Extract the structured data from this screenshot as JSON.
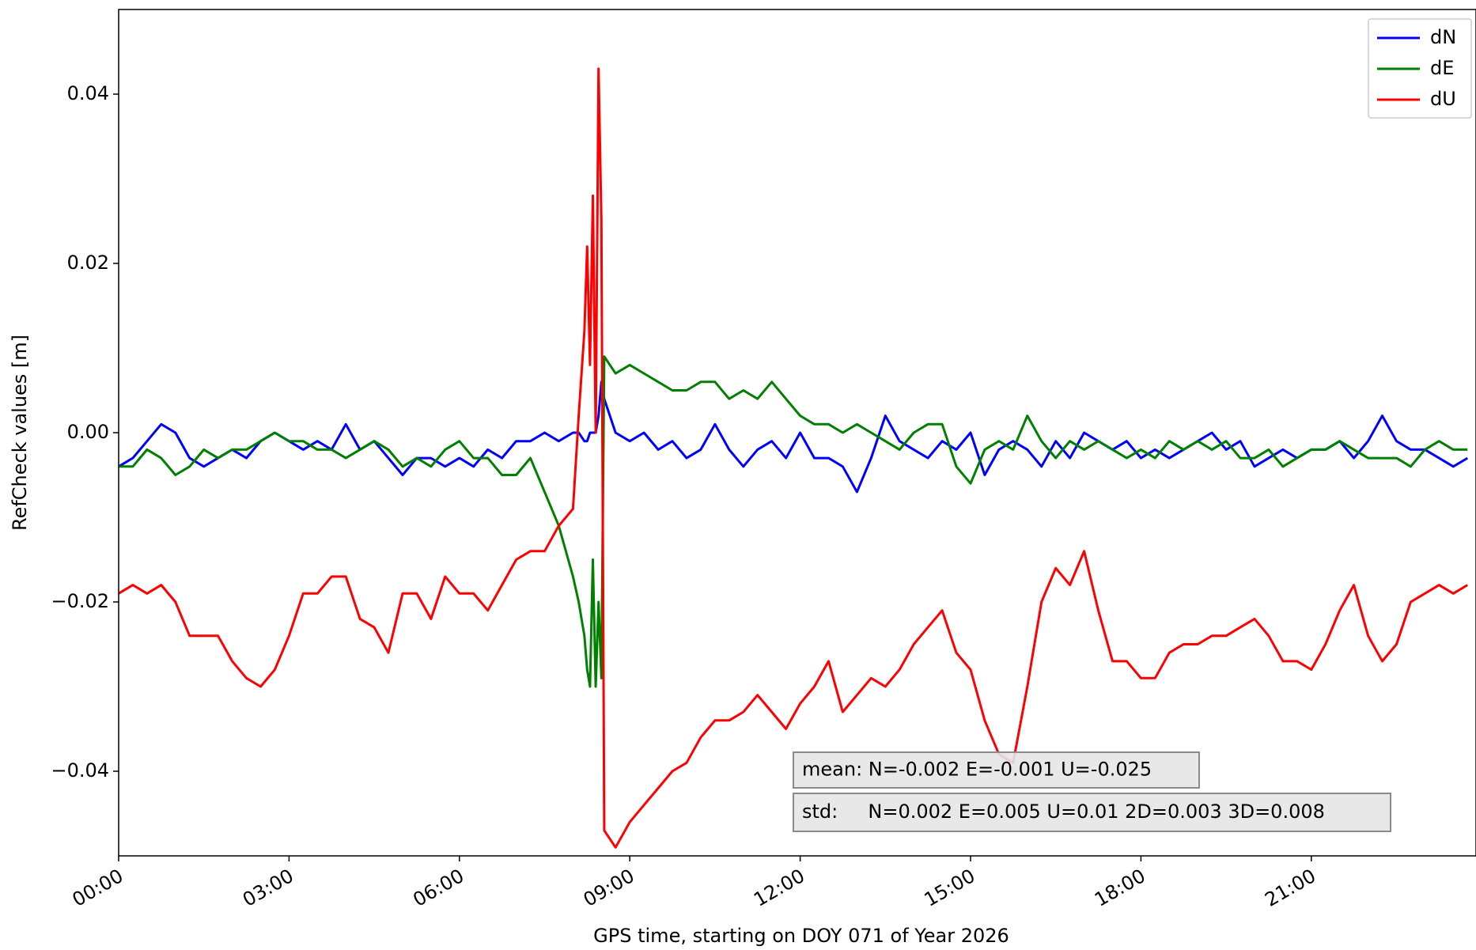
{
  "chart_data": {
    "type": "line",
    "xlabel": "GPS time, starting on DOY 071 of Year 2026",
    "ylabel": "RefCheck values [m]",
    "x": [
      0,
      0.25,
      0.5,
      0.75,
      1,
      1.25,
      1.5,
      1.75,
      2,
      2.25,
      2.5,
      2.75,
      3,
      3.25,
      3.5,
      3.75,
      4,
      4.25,
      4.5,
      4.75,
      5,
      5.25,
      5.5,
      5.75,
      6,
      6.25,
      6.5,
      6.75,
      7,
      7.25,
      7.5,
      7.75,
      8,
      8.1,
      8.2,
      8.25,
      8.3,
      8.35,
      8.4,
      8.45,
      8.5,
      8.55,
      8.75,
      9,
      9.25,
      9.5,
      9.75,
      10,
      10.25,
      10.5,
      10.75,
      11,
      11.25,
      11.5,
      11.75,
      12,
      12.25,
      12.5,
      12.75,
      13,
      13.25,
      13.5,
      13.75,
      14,
      14.25,
      14.5,
      14.75,
      15,
      15.25,
      15.5,
      15.75,
      16,
      16.25,
      16.5,
      16.75,
      17,
      17.25,
      17.5,
      17.75,
      18,
      18.25,
      18.5,
      18.75,
      19,
      19.25,
      19.5,
      19.75,
      20,
      20.25,
      20.5,
      20.75,
      21,
      21.25,
      21.5,
      21.75,
      22,
      22.25,
      22.5,
      22.75,
      23,
      23.25,
      23.5,
      23.75
    ],
    "series": [
      {
        "name": "dN",
        "color": "#0000ff",
        "values": [
          -0.004,
          -0.003,
          -0.001,
          0.001,
          0.0,
          -0.003,
          -0.004,
          -0.003,
          -0.002,
          -0.003,
          -0.001,
          0.0,
          -0.001,
          -0.002,
          -0.001,
          -0.002,
          0.001,
          -0.002,
          -0.001,
          -0.003,
          -0.005,
          -0.003,
          -0.003,
          -0.004,
          -0.003,
          -0.004,
          -0.002,
          -0.003,
          -0.001,
          -0.001,
          0.0,
          -0.001,
          0.0,
          0.0,
          -0.001,
          -0.001,
          0.0,
          0.0,
          0.0,
          0.002,
          0.006,
          0.004,
          0.0,
          -0.001,
          0.0,
          -0.002,
          -0.001,
          -0.003,
          -0.002,
          0.001,
          -0.002,
          -0.004,
          -0.002,
          -0.001,
          -0.003,
          0.0,
          -0.003,
          -0.003,
          -0.004,
          -0.007,
          -0.003,
          0.002,
          -0.001,
          -0.002,
          -0.003,
          -0.001,
          -0.002,
          0.0,
          -0.005,
          -0.002,
          -0.001,
          -0.002,
          -0.004,
          -0.001,
          -0.003,
          0.0,
          -0.001,
          -0.002,
          -0.001,
          -0.003,
          -0.002,
          -0.003,
          -0.002,
          -0.001,
          0.0,
          -0.002,
          -0.001,
          -0.004,
          -0.003,
          -0.002,
          -0.003,
          -0.002,
          -0.002,
          -0.001,
          -0.003,
          -0.001,
          0.002,
          -0.001,
          -0.002,
          -0.002,
          -0.003,
          -0.004,
          -0.003
        ]
      },
      {
        "name": "dE",
        "color": "#008000",
        "values": [
          -0.004,
          -0.004,
          -0.002,
          -0.003,
          -0.005,
          -0.004,
          -0.002,
          -0.003,
          -0.002,
          -0.002,
          -0.001,
          0.0,
          -0.001,
          -0.001,
          -0.002,
          -0.002,
          -0.003,
          -0.002,
          -0.001,
          -0.002,
          -0.004,
          -0.003,
          -0.004,
          -0.002,
          -0.001,
          -0.003,
          -0.003,
          -0.005,
          -0.005,
          -0.003,
          -0.007,
          -0.011,
          -0.017,
          -0.02,
          -0.024,
          -0.028,
          -0.03,
          -0.015,
          -0.03,
          -0.02,
          -0.029,
          0.009,
          0.007,
          0.008,
          0.007,
          0.006,
          0.005,
          0.005,
          0.006,
          0.006,
          0.004,
          0.005,
          0.004,
          0.006,
          0.004,
          0.002,
          0.001,
          0.001,
          0.0,
          0.001,
          0.0,
          -0.001,
          -0.002,
          0.0,
          0.001,
          0.001,
          -0.004,
          -0.006,
          -0.002,
          -0.001,
          -0.002,
          0.002,
          -0.001,
          -0.003,
          -0.001,
          -0.002,
          -0.001,
          -0.002,
          -0.003,
          -0.002,
          -0.003,
          -0.001,
          -0.002,
          -0.001,
          -0.002,
          -0.001,
          -0.003,
          -0.003,
          -0.002,
          -0.004,
          -0.003,
          -0.002,
          -0.002,
          -0.001,
          -0.002,
          -0.003,
          -0.003,
          -0.003,
          -0.004,
          -0.002,
          -0.001,
          -0.002,
          -0.002
        ]
      },
      {
        "name": "dU",
        "color": "#ff0000",
        "values": [
          -0.019,
          -0.018,
          -0.019,
          -0.018,
          -0.02,
          -0.024,
          -0.024,
          -0.024,
          -0.027,
          -0.029,
          -0.03,
          -0.028,
          -0.024,
          -0.019,
          -0.019,
          -0.017,
          -0.017,
          -0.022,
          -0.023,
          -0.026,
          -0.019,
          -0.019,
          -0.022,
          -0.017,
          -0.019,
          -0.019,
          -0.021,
          -0.018,
          -0.015,
          -0.014,
          -0.014,
          -0.011,
          -0.009,
          0.002,
          0.012,
          0.022,
          0.008,
          0.028,
          0.0,
          0.043,
          0.025,
          -0.047,
          -0.049,
          -0.046,
          -0.044,
          -0.042,
          -0.04,
          -0.039,
          -0.036,
          -0.034,
          -0.034,
          -0.033,
          -0.031,
          -0.033,
          -0.035,
          -0.032,
          -0.03,
          -0.027,
          -0.033,
          -0.031,
          -0.029,
          -0.03,
          -0.028,
          -0.025,
          -0.023,
          -0.021,
          -0.026,
          -0.028,
          -0.034,
          -0.038,
          -0.039,
          -0.03,
          -0.02,
          -0.016,
          -0.018,
          -0.014,
          -0.021,
          -0.027,
          -0.027,
          -0.029,
          -0.029,
          -0.026,
          -0.025,
          -0.025,
          -0.024,
          -0.024,
          -0.023,
          -0.022,
          -0.024,
          -0.027,
          -0.027,
          -0.028,
          -0.025,
          -0.021,
          -0.018,
          -0.024,
          -0.027,
          -0.025,
          -0.02,
          -0.019,
          -0.018,
          -0.019,
          -0.018
        ]
      }
    ],
    "xlim": [
      0,
      23.9
    ],
    "xticks": [
      {
        "value": 0,
        "label": "00:00"
      },
      {
        "value": 3,
        "label": "03:00"
      },
      {
        "value": 6,
        "label": "06:00"
      },
      {
        "value": 9,
        "label": "09:00"
      },
      {
        "value": 12,
        "label": "12:00"
      },
      {
        "value": 15,
        "label": "15:00"
      },
      {
        "value": 18,
        "label": "18:00"
      },
      {
        "value": 21,
        "label": "21:00"
      }
    ],
    "ylim": [
      -0.05,
      0.05
    ],
    "yticks": [
      {
        "value": -0.04,
        "label": "−0.04"
      },
      {
        "value": -0.02,
        "label": "−0.02"
      },
      {
        "value": 0,
        "label": "0.00"
      },
      {
        "value": 0.02,
        "label": "0.02"
      },
      {
        "value": 0.04,
        "label": "0.04"
      }
    ],
    "legend": "upper right",
    "annotations": [
      "mean: N=-0.002 E=-0.001 U=-0.025",
      "std:     N=0.002 E=0.005 U=0.01 2D=0.003 3D=0.008"
    ]
  }
}
